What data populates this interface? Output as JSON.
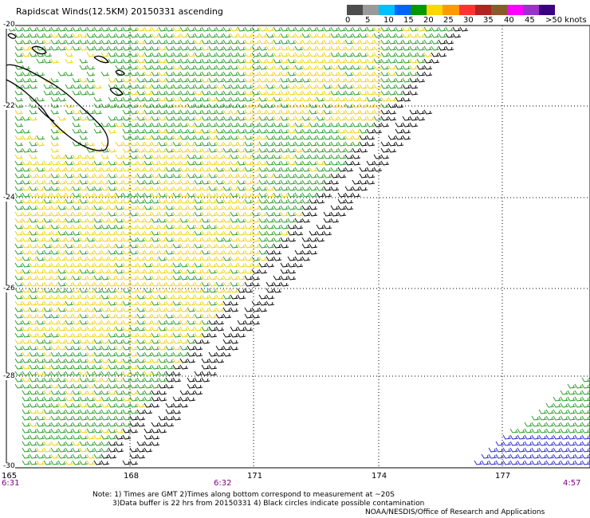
{
  "title": "Rapidscat Winds(12.5KM) 20150331 ascending",
  "legend": {
    "colors": [
      "#4d4d4d",
      "#9a9a9a",
      "#00bfff",
      "#0066ff",
      "#009900",
      "#ffd700",
      "#ff9900",
      "#ff3333",
      "#b22222",
      "#8b5a2b",
      "#ff00ff",
      "#9932cc",
      "#3a0080"
    ],
    "labels": [
      "0",
      "5",
      "10",
      "15",
      "20",
      "25",
      "30",
      "35",
      "40",
      "45",
      ">50 knots"
    ]
  },
  "map": {
    "lat_labels": [
      "-20",
      "-22",
      "-24",
      "-26",
      "-28",
      "-30"
    ],
    "lon_labels": [
      "165",
      "168",
      "171",
      "174",
      "177"
    ],
    "times": [
      "6:31",
      "6:32",
      "4:57"
    ],
    "lat_range": [
      -30,
      -20
    ],
    "lon_range": [
      165,
      179.5
    ]
  },
  "notes": [
    "Note: 1) Times are GMT 2)Times along bottom correspond to measurement at ~20S",
    "3)Data buffer is 22 hrs from 20150331 4) Black circles indicate possible contamination"
  ],
  "credit": "NOAA/NESDIS/Office of Research and Applications"
}
